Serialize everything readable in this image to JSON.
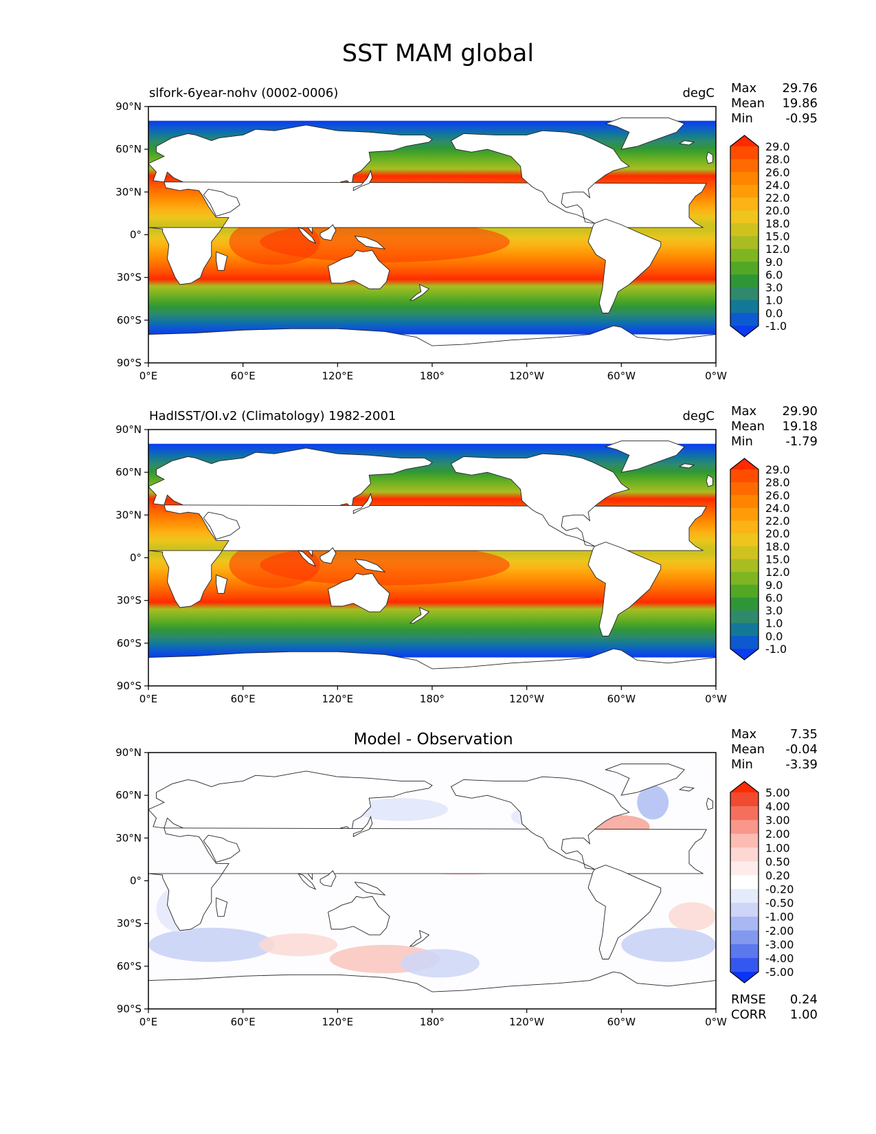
{
  "title": "SST MAM global",
  "chart_data": [
    {
      "type": "heatmap",
      "subtitle": "slfork-6year-nohv (0002-0006)",
      "units": "degC",
      "stats": [
        {
          "label": "Max",
          "value": "29.76"
        },
        {
          "label": "Mean",
          "value": "19.86"
        },
        {
          "label": "Min",
          "value": "-0.95"
        }
      ],
      "x_ticks": [
        "0°E",
        "60°E",
        "120°E",
        "180°",
        "120°W",
        "60°W",
        "0°W"
      ],
      "y_ticks": [
        "90°N",
        "60°N",
        "30°N",
        "0°",
        "30°S",
        "60°S",
        "90°S"
      ],
      "lon_range": [
        0,
        360
      ],
      "lat_range": [
        -90,
        90
      ],
      "colorbar_levels": [
        "29.0",
        "28.0",
        "26.0",
        "24.0",
        "22.0",
        "20.0",
        "18.0",
        "15.0",
        "12.0",
        "9.0",
        "6.0",
        "3.0",
        "1.0",
        "0.0",
        "-1.0"
      ],
      "colorbar_colors": [
        "#ff2a00",
        "#ff4d00",
        "#ff6a00",
        "#ff8400",
        "#ff9c08",
        "#fbb316",
        "#eec51c",
        "#cfc21f",
        "#a9bd22",
        "#7fb523",
        "#52a825",
        "#2f9637",
        "#2e8a6b",
        "#137898",
        "#0d5ad0",
        "#0a3cf0"
      ],
      "equator_max_c": 29.76,
      "polar_min_c": -0.95
    },
    {
      "type": "heatmap",
      "subtitle": "HadISST/OI.v2 (Climatology) 1982-2001",
      "units": "degC",
      "stats": [
        {
          "label": "Max",
          "value": "29.90"
        },
        {
          "label": "Mean",
          "value": "19.18"
        },
        {
          "label": "Min",
          "value": "-1.79"
        }
      ],
      "x_ticks": [
        "0°E",
        "60°E",
        "120°E",
        "180°",
        "120°W",
        "60°W",
        "0°W"
      ],
      "y_ticks": [
        "90°N",
        "60°N",
        "30°N",
        "0°",
        "30°S",
        "60°S",
        "90°S"
      ],
      "lon_range": [
        0,
        360
      ],
      "lat_range": [
        -90,
        90
      ],
      "colorbar_levels": [
        "29.0",
        "28.0",
        "26.0",
        "24.0",
        "22.0",
        "20.0",
        "18.0",
        "15.0",
        "12.0",
        "9.0",
        "6.0",
        "3.0",
        "1.0",
        "0.0",
        "-1.0"
      ],
      "colorbar_colors": [
        "#ff2a00",
        "#ff4d00",
        "#ff6a00",
        "#ff8400",
        "#ff9c08",
        "#fbb316",
        "#eec51c",
        "#cfc21f",
        "#a9bd22",
        "#7fb523",
        "#52a825",
        "#2f9637",
        "#2e8a6b",
        "#137898",
        "#0d5ad0",
        "#0a3cf0"
      ],
      "equator_max_c": 29.9,
      "polar_min_c": -1.79
    },
    {
      "type": "heatmap",
      "subtitle": "Model - Observation",
      "units": "",
      "stats": [
        {
          "label": "Max",
          "value": "7.35"
        },
        {
          "label": "Mean",
          "value": "-0.04"
        },
        {
          "label": "Min",
          "value": "-3.39"
        }
      ],
      "extra_stats": [
        {
          "label": "RMSE",
          "value": "0.24"
        },
        {
          "label": "CORR",
          "value": "1.00"
        }
      ],
      "x_ticks": [
        "0°E",
        "60°E",
        "120°E",
        "180°",
        "120°W",
        "60°W",
        "0°W"
      ],
      "y_ticks": [
        "90°N",
        "60°N",
        "30°N",
        "0°",
        "30°S",
        "60°S",
        "90°S"
      ],
      "lon_range": [
        0,
        360
      ],
      "lat_range": [
        -90,
        90
      ],
      "colorbar_levels": [
        "5.00",
        "4.00",
        "3.00",
        "2.00",
        "1.00",
        "0.50",
        "0.20",
        "-0.20",
        "-0.50",
        "-1.00",
        "-2.00",
        "-3.00",
        "-4.00",
        "-5.00"
      ],
      "colorbar_colors": [
        "#ff2a00",
        "#f04a30",
        "#f4705d",
        "#f8978a",
        "#fbbcb4",
        "#fdd8d3",
        "#fdecea",
        "#ffffff",
        "#e6ebfb",
        "#cdd6f7",
        "#a9b8f3",
        "#8399ee",
        "#5b78ec",
        "#3457f0",
        "#0b33f7"
      ]
    }
  ]
}
